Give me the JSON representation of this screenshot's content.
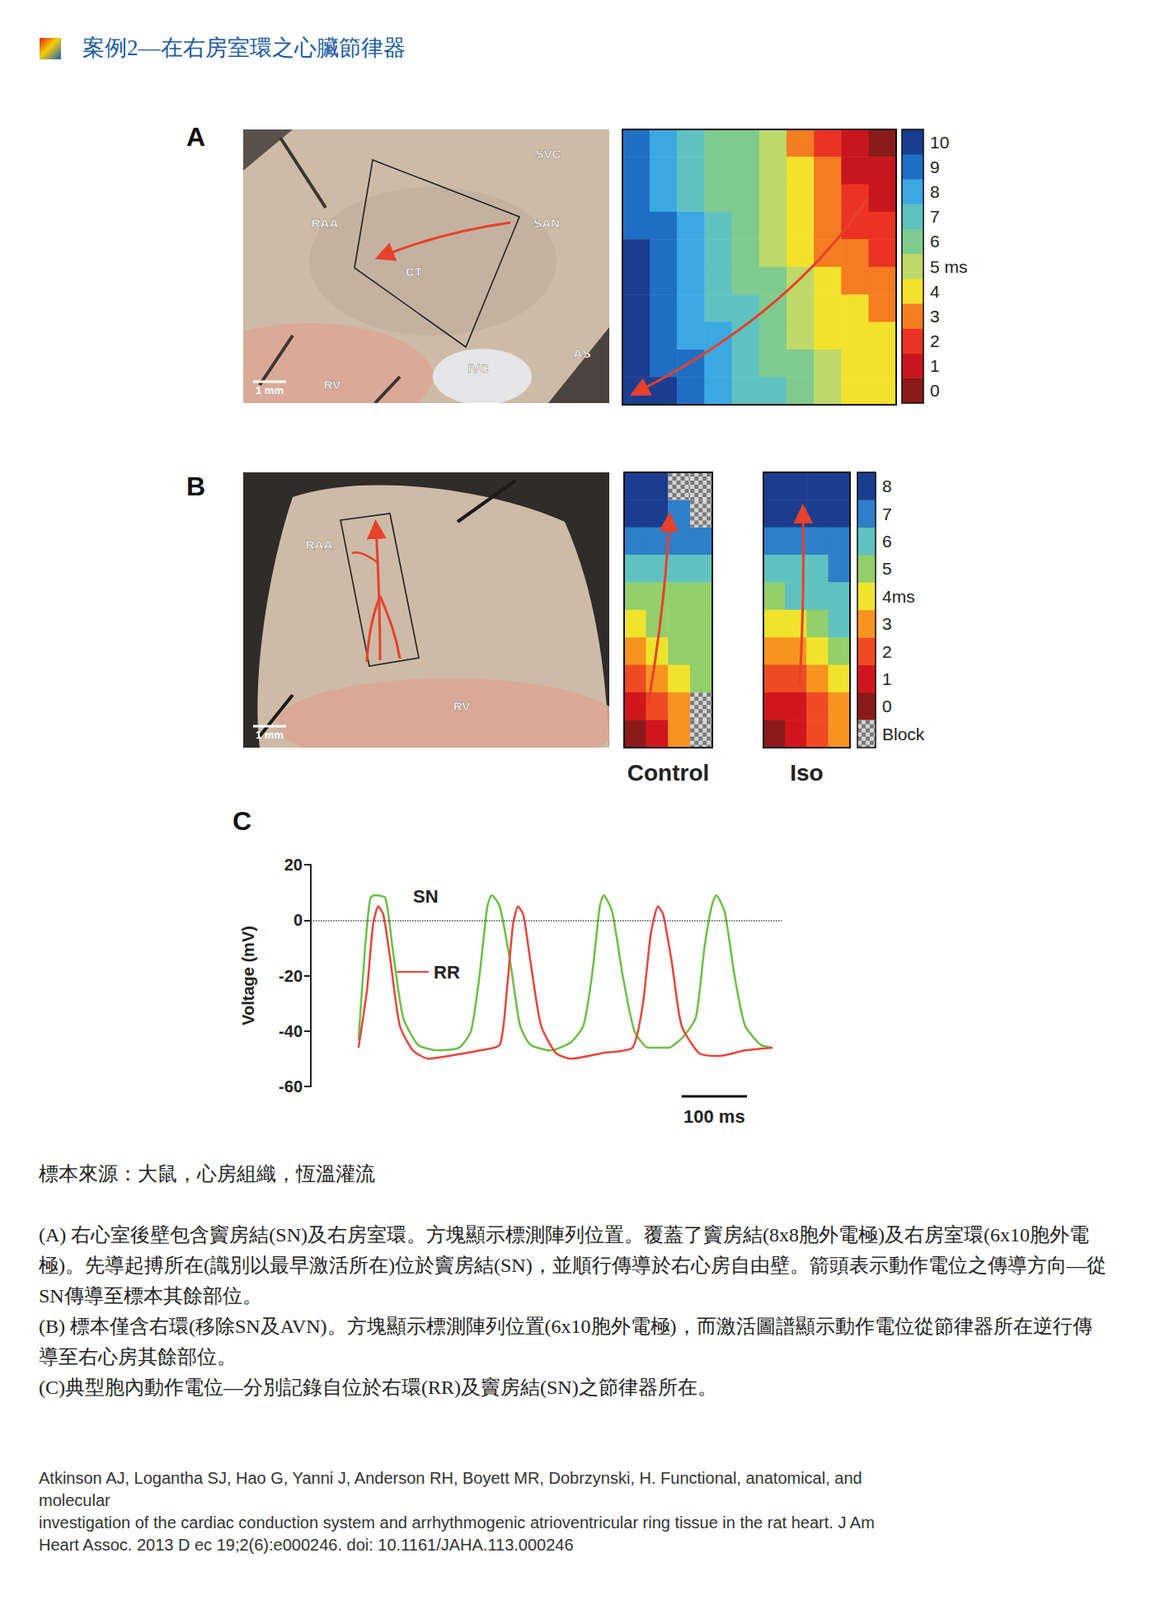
{
  "header": {
    "title": "案例2—在右房室環之心臟節律器"
  },
  "panel_a": {
    "letter": "A",
    "photo": {
      "labels": [
        "SVC",
        "RAA",
        "SAN",
        "CT",
        "IVC",
        "AS",
        "RV"
      ],
      "scale_bar": "1 mm"
    },
    "activation_map": {
      "type": "heatmap",
      "cells": [
        [
          9,
          8,
          7,
          6,
          6,
          5,
          3,
          2,
          1,
          0
        ],
        [
          9,
          8,
          7,
          6,
          6,
          5,
          4,
          3,
          1,
          1
        ],
        [
          9,
          8,
          7,
          6,
          6,
          5,
          4,
          3,
          2,
          1
        ],
        [
          9,
          9,
          8,
          7,
          6,
          5,
          4,
          3,
          2,
          2
        ],
        [
          10,
          9,
          8,
          7,
          6,
          5,
          4,
          3,
          3,
          2
        ],
        [
          10,
          9,
          8,
          7,
          6,
          6,
          5,
          4,
          3,
          3
        ],
        [
          10,
          9,
          8,
          7,
          7,
          6,
          5,
          4,
          4,
          3
        ],
        [
          10,
          9,
          8,
          8,
          7,
          6,
          5,
          4,
          4,
          4
        ],
        [
          10,
          9,
          9,
          8,
          7,
          6,
          6,
          5,
          4,
          4
        ],
        [
          10,
          10,
          9,
          8,
          7,
          7,
          6,
          5,
          4,
          4
        ]
      ],
      "colorbar": {
        "ticks": [
          0,
          1,
          2,
          3,
          4,
          {
            "value": 5,
            "label": "5 ms"
          },
          6,
          7,
          8,
          9,
          10
        ],
        "colors": [
          "#8b1a1a",
          "#c8161d",
          "#ea3323",
          "#f57c20",
          "#f3e22b",
          "#bdd96a",
          "#7fcb8e",
          "#5fc2c0",
          "#3aa9e3",
          "#1f6fc4",
          "#1b3d8f"
        ]
      }
    }
  },
  "panel_b": {
    "letter": "B",
    "photo": {
      "labels": [
        "RAA",
        "RV"
      ],
      "scale_bar": "1 mm"
    },
    "maps": [
      {
        "title": "Control",
        "type": "heatmap",
        "cells": [
          [
            8,
            8,
            null,
            null
          ],
          [
            8,
            8,
            7,
            null
          ],
          [
            7,
            7,
            7,
            7
          ],
          [
            6,
            6,
            6,
            6
          ],
          [
            5,
            5,
            5,
            5
          ],
          [
            4,
            5,
            5,
            5
          ],
          [
            3,
            4,
            5,
            5
          ],
          [
            2,
            3,
            4,
            5
          ],
          [
            1,
            2,
            3,
            null
          ],
          [
            0,
            1,
            3,
            null
          ]
        ]
      },
      {
        "title": "Iso",
        "type": "heatmap",
        "cells": [
          [
            8,
            8,
            8,
            8
          ],
          [
            8,
            8,
            8,
            8
          ],
          [
            7,
            7,
            7,
            7
          ],
          [
            6,
            6,
            6,
            7
          ],
          [
            5,
            6,
            6,
            6
          ],
          [
            4,
            4,
            5,
            6
          ],
          [
            3,
            3,
            4,
            5
          ],
          [
            2,
            2,
            3,
            4
          ],
          [
            1,
            1,
            2,
            3
          ],
          [
            0,
            1,
            2,
            3
          ]
        ]
      }
    ],
    "colorbar": {
      "ticks": [
        0,
        1,
        2,
        3,
        {
          "value": 4,
          "label": "4ms"
        },
        5,
        6,
        7,
        8
      ],
      "colors": [
        "#8b1a1a",
        "#d0161d",
        "#ef4b22",
        "#f79420",
        "#f0e32c",
        "#93cf6b",
        "#5fc2c0",
        "#2d7fc9",
        "#1b3d8f"
      ],
      "block_label": "Block"
    }
  },
  "panel_c": {
    "letter": "C"
  },
  "chart_data": {
    "type": "line",
    "y_label": "Voltage (mV)",
    "xlim": [
      0,
      720
    ],
    "ylim": [
      -60,
      20
    ],
    "yticks": [
      -60,
      -40,
      -20,
      0,
      20
    ],
    "tick_labels": "y",
    "grid": false,
    "series": [
      {
        "name": "SN",
        "color": "#6cbf45",
        "x": [
          73,
          83,
          91,
          98,
          114,
          125,
          141,
          164,
          195,
          227,
          245,
          258,
          270,
          277,
          289,
          305,
          320,
          336,
          367,
          398,
          417,
          430,
          442,
          448,
          461,
          477,
          495,
          516,
          547,
          570,
          589,
          602,
          613,
          620,
          633,
          648,
          664,
          688,
          706
        ],
        "values": [
          -43,
          -10,
          8,
          9,
          8,
          -10,
          -35,
          -45,
          -47,
          -46,
          -40,
          -20,
          5,
          9,
          5,
          -15,
          -38,
          -45,
          -47,
          -44,
          -38,
          -20,
          5,
          9,
          3,
          -20,
          -40,
          -46,
          -46,
          -42,
          -35,
          -10,
          5,
          9,
          3,
          -20,
          -38,
          -45,
          -46
        ]
      },
      {
        "name": "RR",
        "color": "#e8453c",
        "x": [
          73,
          86,
          95,
          103,
          111,
          122,
          136,
          156,
          180,
          211,
          258,
          289,
          300,
          309,
          317,
          325,
          336,
          352,
          375,
          398,
          445,
          492,
          508,
          520,
          531,
          539,
          552,
          567,
          594,
          625,
          664,
          706
        ],
        "values": [
          -46,
          -25,
          -2,
          5,
          2,
          -15,
          -38,
          -47,
          -50,
          -49,
          -47,
          -45,
          -25,
          -2,
          5,
          2,
          -15,
          -38,
          -48,
          -50,
          -48,
          -46,
          -30,
          -5,
          5,
          2,
          -15,
          -38,
          -48,
          -49,
          -47,
          -46
        ]
      }
    ],
    "annotations": [
      {
        "type": "hline",
        "y": 0,
        "line_style": "dotted"
      },
      {
        "type": "scale_bar",
        "length": 100,
        "label": "100 ms"
      }
    ]
  },
  "caption": {
    "source": "標本來源：大鼠，心房組織，恆溫灌流",
    "paragraphs": [
      "(A) 右心室後壁包含竇房結(SN)及右房室環。方塊顯示標測陣列位置。覆蓋了竇房結(8x8胞外電極)及右房室環(6x10胞外電極)。先導起搏所在(識別以最早激活所在)位於竇房結(SN)，並順行傳導於右心房自由壁。箭頭表示動作電位之傳導方向—從SN傳導至標本其餘部位。",
      "(B) 標本僅含右環(移除SN及AVN)。方塊顯示標測陣列位置(6x10胞外電極)，而激活圖譜顯示動作電位從節律器所在逆行傳導至右心房其餘部位。",
      "(C)典型胞內動作電位—分別記錄自位於右環(RR)及竇房結(SN)之節律器所在。"
    ]
  },
  "citation": {
    "lines": [
      "Atkinson AJ, Logantha SJ, Hao G, Yanni J, Anderson RH, Boyett MR, Dobrzynski, H. Functional, anatomical, and",
      "molecular",
      "investigation of the cardiac conduction system and arrhythmogenic atrioventricular ring tissue in the rat heart. J Am",
      "Heart Assoc. 2013 D ec 19;2(6):e000246. doi: 10.1161/JAHA.113.000246"
    ]
  }
}
